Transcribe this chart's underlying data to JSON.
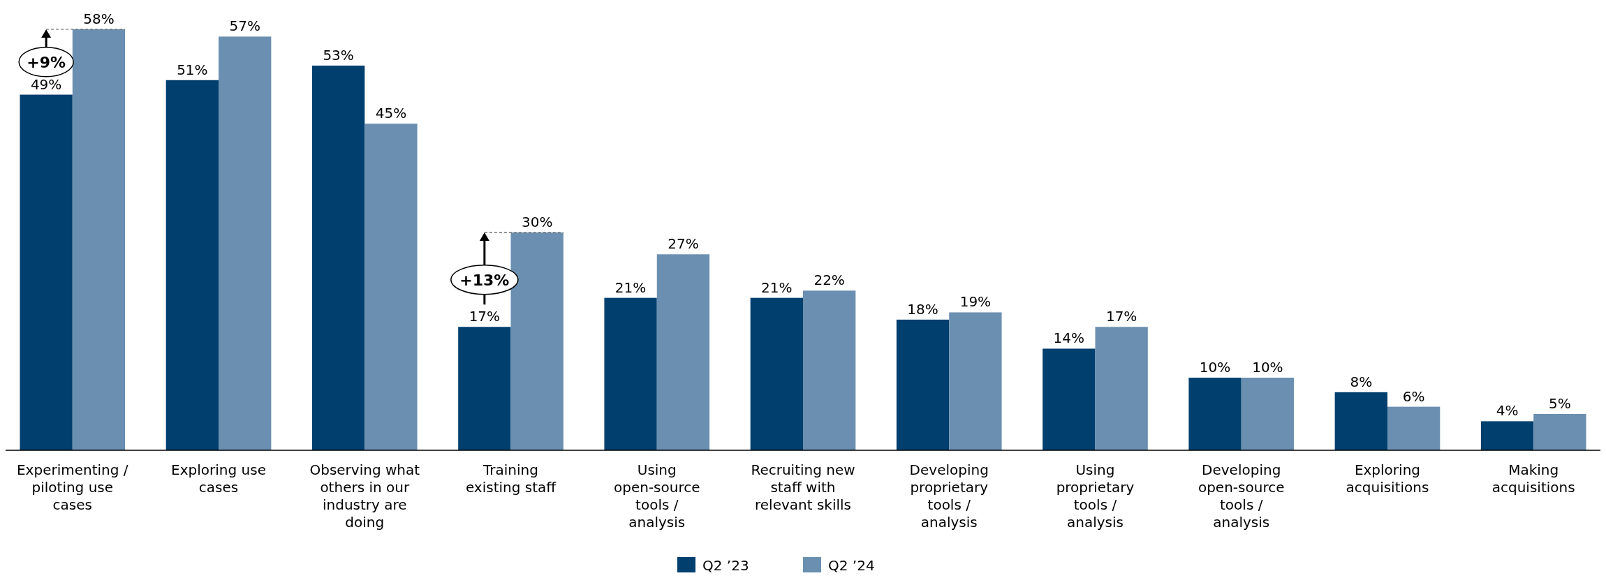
{
  "chart_data": {
    "type": "bar",
    "categories": [
      "Experimenting / piloting use cases",
      "Exploring use cases",
      "Observing what others in our industry are doing",
      "Training existing staff",
      "Using open-source tools / analysis",
      "Recruiting new staff with relevant skills",
      "Developing proprietary tools / analysis",
      "Using proprietary tools / analysis",
      "Developing open-source tools / analysis",
      "Exploring acquisitions",
      "Making acquisitions"
    ],
    "series": [
      {
        "name": "Q2 ’23",
        "color": "#003f6e",
        "values": [
          49,
          51,
          53,
          17,
          21,
          21,
          18,
          14,
          10,
          8,
          4
        ],
        "value_labels": [
          "49%",
          "51%",
          "53%",
          "17%",
          "21%",
          "21%",
          "18%",
          "14%",
          "10%",
          "8%",
          "4%"
        ]
      },
      {
        "name": "Q2 ’24",
        "color": "#6a8fb0",
        "values": [
          58,
          57,
          45,
          30,
          27,
          22,
          19,
          17,
          10,
          6,
          5
        ],
        "value_labels": [
          "58%",
          "57%",
          "45%",
          "30%",
          "27%",
          "22%",
          "19%",
          "17%",
          "10%",
          "6%",
          "5%"
        ]
      }
    ],
    "annotations": [
      {
        "text": "+9%",
        "x": "Experimenting / piloting use cases",
        "y": 53.5
      },
      {
        "text": "+13%",
        "x": "Training existing staff",
        "y": 23.5
      }
    ],
    "legend": "bottom"
  }
}
